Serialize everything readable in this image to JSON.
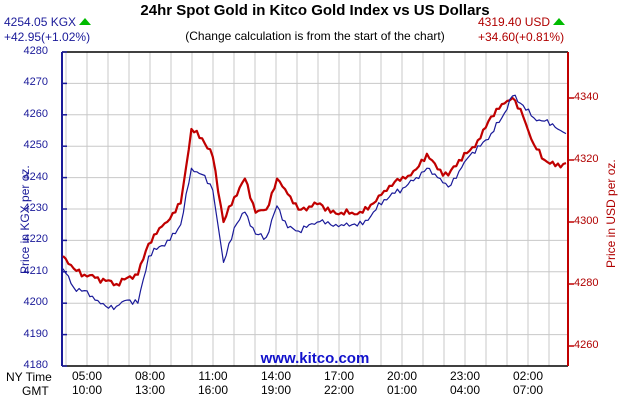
{
  "header": {
    "title": "24hr Spot Gold in Kitco Gold Index vs US Dollars",
    "subtitle": "(Change calculation is from the start of the chart)",
    "kgx_price": "4254.05 KGX",
    "kgx_change": "+42.95(+1.02%)",
    "usd_price": "4319.40 USD",
    "usd_change": "+34.60(+0.81%)",
    "up_icon": "green-up-triangle"
  },
  "watermark": "www.kitco.com",
  "axes": {
    "left_label": "Price in KGX per oz.",
    "right_label": "Price in USD per oz.",
    "left_ticks": [
      "4280",
      "4270",
      "4260",
      "4250",
      "4240",
      "4230",
      "4220",
      "4210",
      "4200",
      "4190",
      "4180"
    ],
    "right_ticks": [
      "4340",
      "4320",
      "4300",
      "4280",
      "4260"
    ],
    "x_row1_label": "NY Time",
    "x_row2_label": "GMT",
    "x_ny": [
      "05:00",
      "08:00",
      "11:00",
      "14:00",
      "17:00",
      "20:00",
      "23:00",
      "02:00"
    ],
    "x_gmt": [
      "10:00",
      "13:00",
      "16:00",
      "19:00",
      "22:00",
      "01:00",
      "04:00",
      "07:00"
    ]
  },
  "colors": {
    "kgx": "#1a1a99",
    "usd": "#c00000",
    "grid": "#c8c8c8",
    "up": "#00bb00",
    "watermark": "#1111cc"
  },
  "chart_data": {
    "type": "line",
    "title": "24hr Spot Gold in Kitco Gold Index vs US Dollars",
    "subtitle": "(Change calculation is from the start of the chart)",
    "xlabel": "NY Time / GMT",
    "ylabel": "Price in KGX per oz.",
    "y2label": "Price in USD per oz.",
    "ylim": [
      4180,
      4280
    ],
    "y2lim": [
      4255,
      4356
    ],
    "grid": true,
    "legend": "none (series identified by axis color: KGX blue left axis, USD red right axis)",
    "x": [
      "03:50",
      "04:30",
      "05:00",
      "05:30",
      "06:00",
      "06:30",
      "07:00",
      "07:30",
      "08:00",
      "08:30",
      "09:00",
      "09:30",
      "10:00",
      "10:30",
      "11:00",
      "11:30",
      "12:00",
      "12:30",
      "13:00",
      "13:30",
      "14:00",
      "14:30",
      "15:00",
      "15:30",
      "16:00",
      "16:30",
      "17:00",
      "17:30",
      "18:00",
      "18:30",
      "19:00",
      "19:30",
      "20:00",
      "20:30",
      "21:00",
      "21:30",
      "22:00",
      "22:30",
      "23:00",
      "23:30",
      "00:00",
      "00:30",
      "01:00",
      "01:30",
      "02:00",
      "02:30",
      "03:00",
      "03:40"
    ],
    "series": [
      {
        "name": "KGX (Kitco Gold Index)",
        "axis": "left",
        "values": [
          4211,
          4205,
          4204,
          4201,
          4199,
          4199,
          4201,
          4200,
          4215,
          4218,
          4220,
          4225,
          4243,
          4241,
          4236,
          4213,
          4224,
          4229,
          4222,
          4221,
          4231,
          4224,
          4223,
          4225,
          4226,
          4225,
          4225,
          4225,
          4225,
          4229,
          4233,
          4235,
          4237,
          4240,
          4243,
          4240,
          4237,
          4242,
          4247,
          4250,
          4254,
          4259,
          4266,
          4263,
          4259,
          4258,
          4256,
          4254
        ]
      },
      {
        "name": "USD (Spot Gold in US Dollars)",
        "axis": "right",
        "values": [
          4289,
          4285,
          4283,
          4282,
          4281,
          4280,
          4282,
          4283,
          4293,
          4298,
          4301,
          4306,
          4330,
          4327,
          4321,
          4300,
          4308,
          4314,
          4303,
          4304,
          4314,
          4309,
          4304,
          4305,
          4306,
          4303,
          4303,
          4303,
          4303,
          4306,
          4310,
          4313,
          4314,
          4317,
          4322,
          4317,
          4315,
          4320,
          4323,
          4327,
          4334,
          4338,
          4340,
          4334,
          4325,
          4320,
          4318,
          4319
        ]
      }
    ]
  }
}
